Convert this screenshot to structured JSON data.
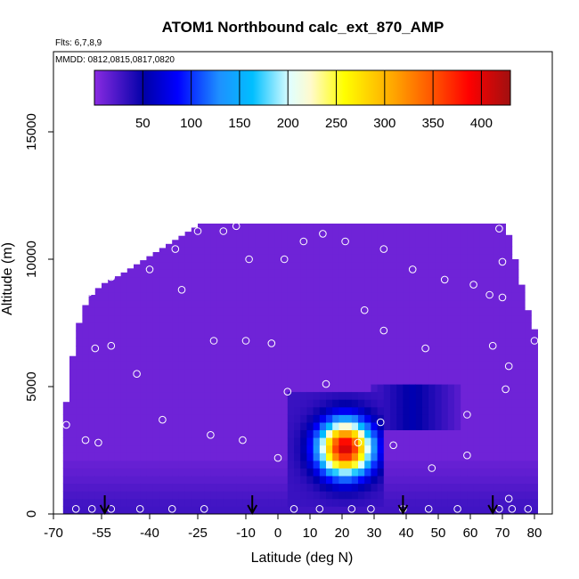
{
  "chart_data": {
    "type": "heatmap",
    "title": "ATOM1 Northbound calc_ext_870_AMP",
    "subtitle_flights": "Flts: 6,7,8,9",
    "subtitle_dates": "MMDD: 0812,0815,0817,0820",
    "xlabel": "Latitude (deg N)",
    "ylabel": "Altitude (m)",
    "xlim": [
      -70,
      80
    ],
    "ylim": [
      0,
      17500
    ],
    "x_ticks": [
      -70,
      -55,
      -40,
      -25,
      -10,
      0,
      10,
      20,
      30,
      40,
      50,
      60,
      70,
      80
    ],
    "y_ticks": [
      0,
      5000,
      10000,
      15000
    ],
    "colorbar": {
      "range": [
        0,
        430
      ],
      "ticks": [
        50,
        100,
        150,
        200,
        250,
        300,
        350,
        400
      ],
      "colors": [
        "#8a2be2",
        "#0000a8",
        "#0000ff",
        "#1e90ff",
        "#00bfff",
        "#e0ffff",
        "#fffacd",
        "#ffff00",
        "#ffa500",
        "#ff4500",
        "#ff0000",
        "#a01010"
      ],
      "color_positions": [
        0,
        0.12,
        0.2,
        0.3,
        0.38,
        0.47,
        0.52,
        0.6,
        0.72,
        0.83,
        0.9,
        1.0
      ]
    },
    "background_value": 10,
    "plume": {
      "center_lat": 21,
      "center_alt": 2600,
      "peak_value": 410,
      "lat_halfwidth": 10,
      "alt_halfwidth": 1300,
      "lat_extent": [
        2,
        34
      ],
      "alt_extent": [
        400,
        4900
      ]
    },
    "upper_band": {
      "lat_extent": [
        28,
        58
      ],
      "alt_extent": [
        3200,
        5000
      ],
      "value": 45
    },
    "top_of_data_profile": [
      [
        -68,
        3400
      ],
      [
        -66,
        5400
      ],
      [
        -64,
        7000
      ],
      [
        -62,
        8000
      ],
      [
        -59,
        8600
      ],
      [
        -56,
        9000
      ],
      [
        -50,
        9400
      ],
      [
        -45,
        9800
      ],
      [
        -40,
        10200
      ],
      [
        -35,
        10600
      ],
      [
        -30,
        11000
      ],
      [
        -25,
        11400
      ],
      [
        70,
        11400
      ],
      [
        72,
        10500
      ],
      [
        74,
        9500
      ],
      [
        76,
        8500
      ],
      [
        78,
        7500
      ],
      [
        80,
        7000
      ]
    ],
    "sample_points": [
      [
        -69.5,
        3200
      ],
      [
        -66,
        3500
      ],
      [
        -60,
        2900
      ],
      [
        -56,
        2800
      ],
      [
        -36,
        3700
      ],
      [
        -21,
        3100
      ],
      [
        -11,
        2900
      ],
      [
        -59,
        8700
      ],
      [
        -52,
        9300
      ],
      [
        -40,
        9600
      ],
      [
        -32,
        10400
      ],
      [
        -25,
        11100
      ],
      [
        -17,
        11100
      ],
      [
        -13,
        11300
      ],
      [
        -9,
        10000
      ],
      [
        2,
        10000
      ],
      [
        8,
        10700
      ],
      [
        14,
        11000
      ],
      [
        21,
        10700
      ],
      [
        33,
        10400
      ],
      [
        42,
        9600
      ],
      [
        52,
        9200
      ],
      [
        61,
        9000
      ],
      [
        66,
        8600
      ],
      [
        69,
        11200
      ],
      [
        70,
        9900
      ],
      [
        70,
        8500
      ],
      [
        -57,
        6500
      ],
      [
        -52,
        6600
      ],
      [
        -44,
        5500
      ],
      [
        -20,
        6800
      ],
      [
        -10,
        6800
      ],
      [
        -2,
        6700
      ],
      [
        27,
        8000
      ],
      [
        33,
        7200
      ],
      [
        46,
        6500
      ],
      [
        67,
        6600
      ],
      [
        72,
        5800
      ],
      [
        71,
        4900
      ],
      [
        80,
        6800
      ],
      [
        -30,
        8800
      ],
      [
        -60,
        9700
      ],
      [
        3,
        4800
      ],
      [
        15,
        5100
      ],
      [
        32,
        3600
      ],
      [
        36,
        2700
      ],
      [
        25,
        2800
      ],
      [
        48,
        1800
      ],
      [
        59,
        2300
      ],
      [
        59,
        3900
      ],
      [
        0,
        2200
      ],
      [
        -70,
        200
      ],
      [
        -63,
        200
      ],
      [
        -58,
        200
      ],
      [
        -52,
        200
      ],
      [
        -43,
        200
      ],
      [
        -33,
        200
      ],
      [
        -23,
        200
      ],
      [
        5,
        200
      ],
      [
        13,
        200
      ],
      [
        23,
        200
      ],
      [
        29,
        200
      ],
      [
        39,
        200
      ],
      [
        47,
        200
      ],
      [
        56,
        200
      ],
      [
        69,
        200
      ],
      [
        73,
        200
      ],
      [
        78,
        200
      ],
      [
        72,
        600
      ]
    ],
    "flight_arrows_lat": [
      -54,
      -8,
      39,
      67
    ]
  },
  "labels": {
    "cb_ticks": [
      "50",
      "100",
      "150",
      "200",
      "250",
      "300",
      "350",
      "400"
    ],
    "x_ticks": [
      "-70",
      "-55",
      "-40",
      "-25",
      "-10",
      "0",
      "10",
      "20",
      "30",
      "40",
      "50",
      "60",
      "70",
      "80"
    ],
    "y_ticks": [
      "0",
      "5000",
      "10000",
      "15000"
    ]
  }
}
